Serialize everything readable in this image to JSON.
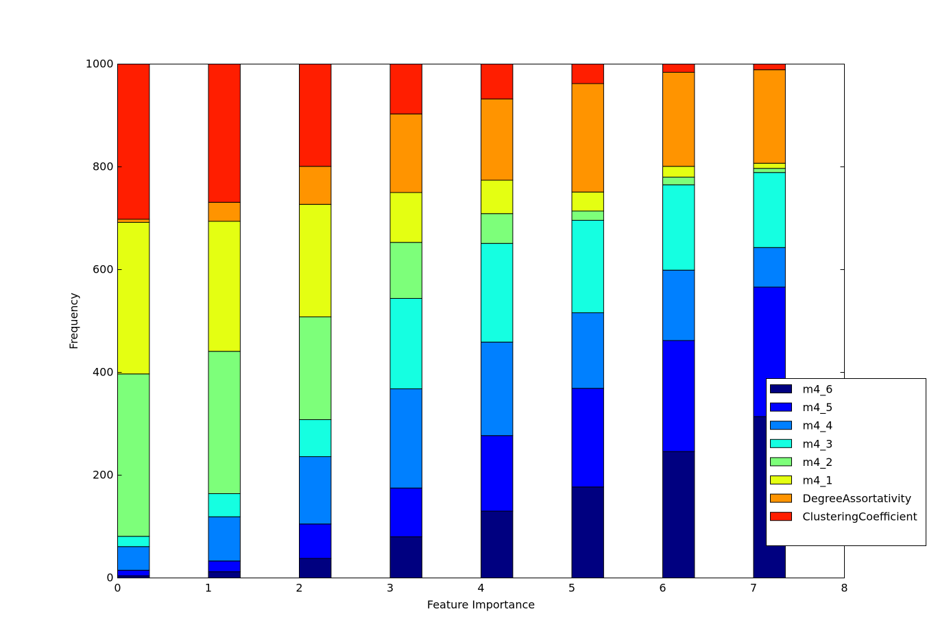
{
  "chart_data": {
    "type": "bar",
    "stacked": true,
    "xlabel": "Feature Importance",
    "ylabel": "Frequency",
    "xlim": [
      0,
      8
    ],
    "ylim": [
      0,
      1000
    ],
    "xticks": [
      "0",
      "1",
      "2",
      "3",
      "4",
      "5",
      "6",
      "7",
      "8"
    ],
    "yticks": [
      "0",
      "200",
      "400",
      "600",
      "800",
      "1000"
    ],
    "bar_positions": [
      0,
      1,
      2,
      3,
      4,
      5,
      6,
      7
    ],
    "bar_width": 0.35,
    "grid": false,
    "legend_placement": "lower-right",
    "series": [
      {
        "name": "m4_6",
        "color": "#000080",
        "values": [
          4,
          12,
          38,
          80,
          130,
          177,
          246,
          314
        ]
      },
      {
        "name": "m4_5",
        "color": "#0000ff",
        "values": [
          11,
          21,
          67,
          95,
          147,
          192,
          216,
          252
        ]
      },
      {
        "name": "m4_4",
        "color": "#0080ff",
        "values": [
          46,
          86,
          131,
          193,
          182,
          147,
          137,
          77
        ]
      },
      {
        "name": "m4_3",
        "color": "#15ffe1",
        "values": [
          20,
          45,
          72,
          176,
          192,
          180,
          166,
          146
        ]
      },
      {
        "name": "m4_2",
        "color": "#7dff7a",
        "values": [
          316,
          277,
          200,
          109,
          58,
          18,
          15,
          8
        ]
      },
      {
        "name": "m4_1",
        "color": "#e4ff12",
        "values": [
          295,
          253,
          219,
          97,
          65,
          37,
          21,
          10
        ]
      },
      {
        "name": "DegreeAssortativity",
        "color": "#ff9400",
        "values": [
          6,
          37,
          74,
          153,
          158,
          211,
          183,
          182
        ]
      },
      {
        "name": "ClusteringCoefficient",
        "color": "#ff1e00",
        "values": [
          302,
          269,
          199,
          97,
          68,
          38,
          16,
          11
        ]
      }
    ]
  }
}
